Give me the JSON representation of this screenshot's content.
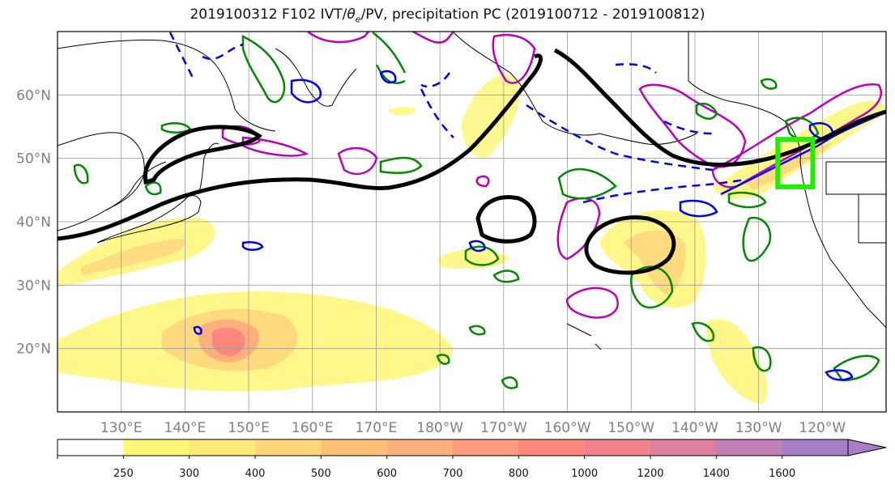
{
  "title": {
    "before": "2019100312 F102 IVT/",
    "theta": "θ",
    "theta_sub": "e",
    "after": "/PV, precipitation PC (2019100712 - 2019100812)"
  },
  "map": {
    "projection": "equirectangular",
    "lon_range": [
      120,
      250
    ],
    "lat_range": [
      10,
      70
    ],
    "grid": true,
    "lat_labels": [
      {
        "lat": 60,
        "text": "60°N"
      },
      {
        "lat": 50,
        "text": "50°N"
      },
      {
        "lat": 40,
        "text": "40°N"
      },
      {
        "lat": 30,
        "text": "30°N"
      },
      {
        "lat": 20,
        "text": "20°N"
      }
    ],
    "lon_labels": [
      {
        "lon": 130,
        "text": "130°E"
      },
      {
        "lon": 140,
        "text": "140°E"
      },
      {
        "lon": 150,
        "text": "150°E"
      },
      {
        "lon": 160,
        "text": "160°E"
      },
      {
        "lon": 170,
        "text": "170°E"
      },
      {
        "lon": 180,
        "text": "180°W"
      },
      {
        "lon": 190,
        "text": "170°W"
      },
      {
        "lon": 200,
        "text": "160°W"
      },
      {
        "lon": 210,
        "text": "150°W"
      },
      {
        "lon": 220,
        "text": "140°W"
      },
      {
        "lon": 230,
        "text": "130°W"
      },
      {
        "lon": 240,
        "text": "120°W"
      }
    ],
    "target_box": {
      "lon": [
        233,
        238.5
      ],
      "lat": [
        45.5,
        53
      ],
      "color": "#22ee00"
    }
  },
  "colorbar": {
    "levels": [
      "",
      "250",
      "300",
      "400",
      "500",
      "600",
      "700",
      "800",
      "1000",
      "1200",
      "1400",
      "1600"
    ],
    "colors": [
      "#ffffff",
      "#fff676",
      "#ffe878",
      "#ffd57c",
      "#ffc078",
      "#ffb07c",
      "#ff9a7c",
      "#ff867c",
      "#f4828c",
      "#de7f9e",
      "#c07fb5",
      "#a87fc4"
    ],
    "extend": "max"
  }
}
